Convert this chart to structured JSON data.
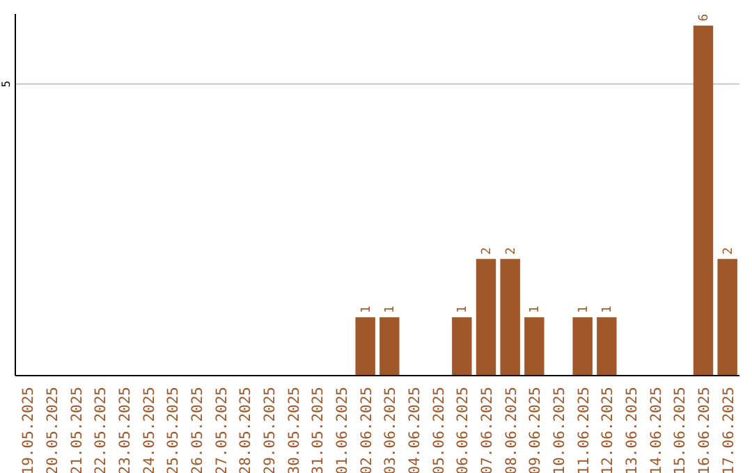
{
  "chart_data": {
    "type": "bar",
    "categories": [
      "19.05.2025",
      "20.05.2025",
      "21.05.2025",
      "22.05.2025",
      "23.05.2025",
      "24.05.2025",
      "25.05.2025",
      "26.05.2025",
      "27.05.2025",
      "28.05.2025",
      "29.05.2025",
      "30.05.2025",
      "31.05.2025",
      "01.06.2025",
      "02.06.2025",
      "03.06.2025",
      "04.06.2025",
      "05.06.2025",
      "06.06.2025",
      "07.06.2025",
      "08.06.2025",
      "09.06.2025",
      "10.06.2025",
      "11.06.2025",
      "12.06.2025",
      "13.06.2025",
      "14.06.2025",
      "15.06.2025",
      "16.06.2025",
      "17.06.2025"
    ],
    "values": [
      null,
      null,
      null,
      null,
      null,
      null,
      null,
      null,
      null,
      null,
      null,
      null,
      null,
      null,
      1,
      1,
      null,
      null,
      1,
      2,
      2,
      1,
      null,
      1,
      1,
      null,
      null,
      null,
      6,
      2
    ],
    "data_labels": true,
    "color": "#a0582a",
    "ylim": [
      0,
      6.2
    ],
    "yticks": [
      5
    ],
    "grid": "y"
  }
}
